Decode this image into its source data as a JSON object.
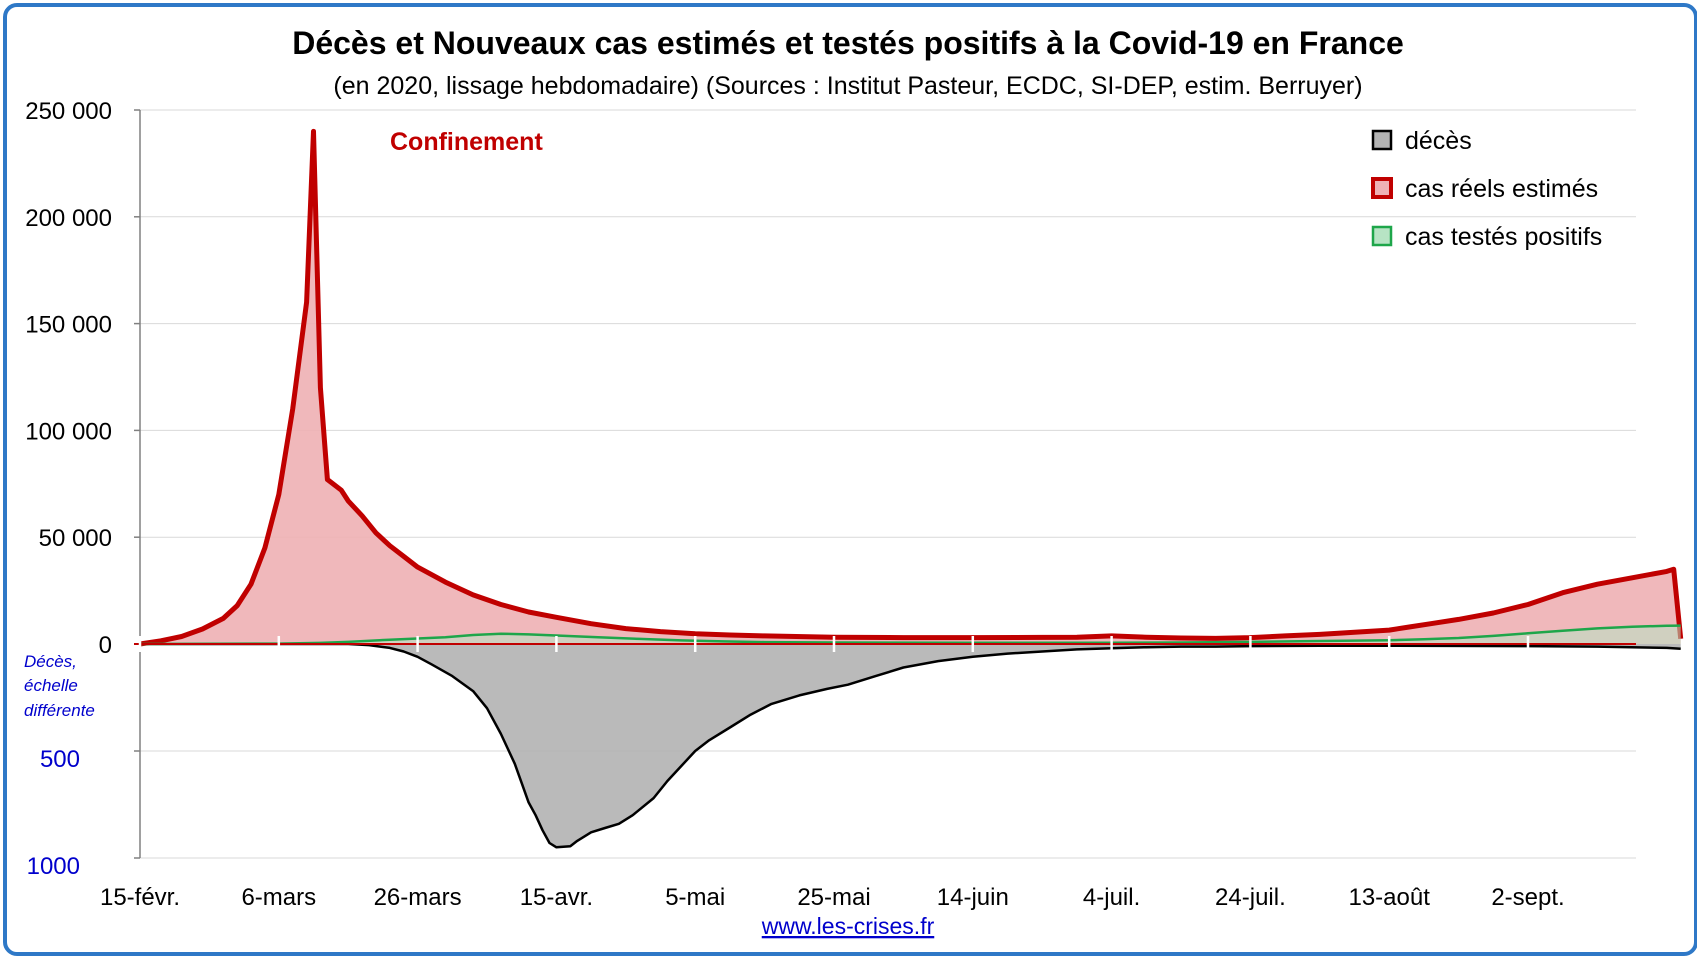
{
  "chart_data": {
    "type": "area",
    "title": "Décès et Nouveaux cas estimés et testés positifs à la Covid-19 en France",
    "subtitle": "(en 2020, lissage hebdomadaire) (Sources : Institut Pasteur, ECDC, SI-DEP, estim. Berruyer)",
    "annotation": "Confinement",
    "side_note": [
      "Décès,",
      "échelle",
      "différente"
    ],
    "source": "www.les-crises.fr",
    "grid": true,
    "legend_position": "top-right",
    "x_ticks": [
      "15-févr.",
      "6-mars",
      "26-mars",
      "15-avr.",
      "5-mai",
      "25-mai",
      "14-juin",
      "4-juil.",
      "24-juil.",
      "13-août",
      "2-sept."
    ],
    "x_tick_day_offsets": [
      0,
      20,
      40,
      60,
      80,
      100,
      120,
      140,
      160,
      180,
      200
    ],
    "cases_axis": {
      "range": [
        0,
        250000
      ],
      "tick_values": [
        0,
        50000,
        100000,
        150000,
        200000,
        250000
      ],
      "tick_labels": [
        "0",
        "50 000",
        "100 000",
        "150 000",
        "200 000",
        "250 000"
      ]
    },
    "deaths_axis": {
      "range": [
        0,
        1000
      ],
      "direction": "down",
      "tick_values": [
        500,
        1000
      ],
      "tick_labels": [
        "500",
        "1000"
      ]
    },
    "series": [
      {
        "name": "cas réels estimés",
        "axis": "cases",
        "color": "#c00000",
        "fill": "#eeb0b4",
        "points": [
          [
            0,
            0
          ],
          [
            3,
            1500
          ],
          [
            6,
            3500
          ],
          [
            9,
            7000
          ],
          [
            12,
            12000
          ],
          [
            14,
            18000
          ],
          [
            16,
            28000
          ],
          [
            18,
            45000
          ],
          [
            20,
            70000
          ],
          [
            22,
            110000
          ],
          [
            24,
            160000
          ],
          [
            25,
            240000
          ],
          [
            26,
            120000
          ],
          [
            27,
            77000
          ],
          [
            29,
            72000
          ],
          [
            30,
            67000
          ],
          [
            32,
            60000
          ],
          [
            34,
            52000
          ],
          [
            36,
            46000
          ],
          [
            38,
            41000
          ],
          [
            40,
            36000
          ],
          [
            44,
            29000
          ],
          [
            48,
            23000
          ],
          [
            52,
            18500
          ],
          [
            56,
            15000
          ],
          [
            60,
            12500
          ],
          [
            65,
            9500
          ],
          [
            70,
            7200
          ],
          [
            75,
            5800
          ],
          [
            80,
            4800
          ],
          [
            85,
            4200
          ],
          [
            90,
            3800
          ],
          [
            100,
            3200
          ],
          [
            110,
            3000
          ],
          [
            120,
            3000
          ],
          [
            130,
            3100
          ],
          [
            135,
            3200
          ],
          [
            140,
            3800
          ],
          [
            145,
            3200
          ],
          [
            150,
            2800
          ],
          [
            155,
            2600
          ],
          [
            160,
            3000
          ],
          [
            165,
            3800
          ],
          [
            170,
            4500
          ],
          [
            175,
            5500
          ],
          [
            180,
            6500
          ],
          [
            183,
            8000
          ],
          [
            186,
            9500
          ],
          [
            190,
            11500
          ],
          [
            195,
            14500
          ],
          [
            200,
            18500
          ],
          [
            205,
            24000
          ],
          [
            210,
            28000
          ],
          [
            215,
            31000
          ],
          [
            220,
            34000
          ],
          [
            221,
            35000
          ],
          [
            222,
            2500
          ]
        ]
      },
      {
        "name": "cas testés positifs",
        "axis": "cases",
        "color": "#1ea64a",
        "fill": "#b7e4c4",
        "points": [
          [
            0,
            0
          ],
          [
            20,
            200
          ],
          [
            26,
            500
          ],
          [
            30,
            1000
          ],
          [
            36,
            2000
          ],
          [
            44,
            3200
          ],
          [
            48,
            4200
          ],
          [
            52,
            4800
          ],
          [
            56,
            4500
          ],
          [
            60,
            4000
          ],
          [
            66,
            3200
          ],
          [
            72,
            2400
          ],
          [
            78,
            1700
          ],
          [
            84,
            1200
          ],
          [
            90,
            900
          ],
          [
            100,
            700
          ],
          [
            120,
            600
          ],
          [
            140,
            600
          ],
          [
            150,
            700
          ],
          [
            160,
            1000
          ],
          [
            170,
            1400
          ],
          [
            180,
            1800
          ],
          [
            185,
            2200
          ],
          [
            190,
            2800
          ],
          [
            195,
            3800
          ],
          [
            200,
            5000
          ],
          [
            205,
            6200
          ],
          [
            210,
            7300
          ],
          [
            215,
            8100
          ],
          [
            220,
            8500
          ],
          [
            222,
            8600
          ]
        ]
      },
      {
        "name": "décès",
        "axis": "deaths",
        "color": "#000000",
        "fill": "#b3b3b3",
        "points": [
          [
            0,
            0
          ],
          [
            30,
            0
          ],
          [
            33,
            5
          ],
          [
            36,
            18
          ],
          [
            38,
            35
          ],
          [
            40,
            60
          ],
          [
            42,
            95
          ],
          [
            45,
            150
          ],
          [
            48,
            220
          ],
          [
            50,
            300
          ],
          [
            52,
            420
          ],
          [
            54,
            560
          ],
          [
            55,
            650
          ],
          [
            56,
            740
          ],
          [
            57,
            800
          ],
          [
            58,
            870
          ],
          [
            59,
            930
          ],
          [
            60,
            950
          ],
          [
            62,
            945
          ],
          [
            63,
            920
          ],
          [
            65,
            880
          ],
          [
            67,
            860
          ],
          [
            69,
            840
          ],
          [
            71,
            800
          ],
          [
            74,
            720
          ],
          [
            76,
            640
          ],
          [
            78,
            570
          ],
          [
            80,
            500
          ],
          [
            82,
            450
          ],
          [
            85,
            390
          ],
          [
            88,
            330
          ],
          [
            91,
            280
          ],
          [
            95,
            240
          ],
          [
            99,
            210
          ],
          [
            102,
            190
          ],
          [
            106,
            150
          ],
          [
            110,
            110
          ],
          [
            115,
            80
          ],
          [
            120,
            60
          ],
          [
            125,
            45
          ],
          [
            130,
            35
          ],
          [
            135,
            25
          ],
          [
            140,
            20
          ],
          [
            145,
            15
          ],
          [
            150,
            12
          ],
          [
            155,
            12
          ],
          [
            160,
            10
          ],
          [
            170,
            8
          ],
          [
            180,
            8
          ],
          [
            200,
            10
          ],
          [
            210,
            12
          ],
          [
            220,
            18
          ],
          [
            222,
            22
          ]
        ]
      }
    ]
  }
}
